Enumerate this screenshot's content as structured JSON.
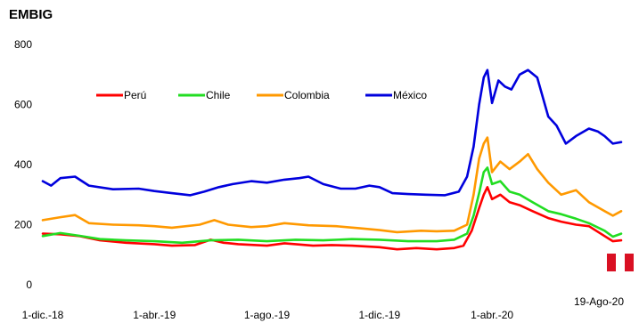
{
  "chart_data": {
    "type": "line",
    "title": "EMBIG",
    "ylim": [
      0,
      800
    ],
    "yticks": [
      0,
      200,
      400,
      600,
      800
    ],
    "x_start": "2018-12-01",
    "x_end": "2020-08-19",
    "xtick_labels": [
      {
        "date": "2018-12-01",
        "label": "1-dic.-18"
      },
      {
        "date": "2019-04-01",
        "label": "1-abr.-19"
      },
      {
        "date": "2019-08-01",
        "label": "1-ago.-19"
      },
      {
        "date": "2019-12-01",
        "label": "1-dic.-19"
      },
      {
        "date": "2020-04-01",
        "label": "1-abr.-20"
      },
      {
        "date": "2020-08-19",
        "label": "19-Ago-20"
      }
    ],
    "legend_position": "top-left",
    "grid": false,
    "series": [
      {
        "name": "Perú",
        "color": "#ff0000",
        "points": [
          [
            "2018-12-01",
            170
          ],
          [
            "2018-12-20",
            168
          ],
          [
            "2019-01-10",
            162
          ],
          [
            "2019-02-01",
            148
          ],
          [
            "2019-03-01",
            140
          ],
          [
            "2019-04-01",
            135
          ],
          [
            "2019-04-20",
            130
          ],
          [
            "2019-05-15",
            132
          ],
          [
            "2019-06-01",
            150
          ],
          [
            "2019-06-15",
            140
          ],
          [
            "2019-07-01",
            135
          ],
          [
            "2019-08-01",
            130
          ],
          [
            "2019-08-20",
            138
          ],
          [
            "2019-09-01",
            135
          ],
          [
            "2019-09-20",
            130
          ],
          [
            "2019-10-10",
            132
          ],
          [
            "2019-11-01",
            130
          ],
          [
            "2019-12-01",
            125
          ],
          [
            "2019-12-20",
            118
          ],
          [
            "2020-01-10",
            122
          ],
          [
            "2020-02-01",
            118
          ],
          [
            "2020-02-20",
            122
          ],
          [
            "2020-03-01",
            130
          ],
          [
            "2020-03-10",
            180
          ],
          [
            "2020-03-18",
            255
          ],
          [
            "2020-03-23",
            300
          ],
          [
            "2020-03-27",
            325
          ],
          [
            "2020-04-01",
            285
          ],
          [
            "2020-04-10",
            300
          ],
          [
            "2020-04-20",
            275
          ],
          [
            "2020-05-01",
            265
          ],
          [
            "2020-05-15",
            245
          ],
          [
            "2020-06-01",
            222
          ],
          [
            "2020-06-15",
            210
          ],
          [
            "2020-07-01",
            200
          ],
          [
            "2020-07-15",
            195
          ],
          [
            "2020-08-01",
            162
          ],
          [
            "2020-08-10",
            145
          ],
          [
            "2020-08-19",
            148
          ]
        ]
      },
      {
        "name": "Chile",
        "color": "#22dd22",
        "points": [
          [
            "2018-12-01",
            162
          ],
          [
            "2018-12-20",
            172
          ],
          [
            "2019-01-10",
            163
          ],
          [
            "2019-02-01",
            152
          ],
          [
            "2019-03-01",
            148
          ],
          [
            "2019-04-01",
            145
          ],
          [
            "2019-05-01",
            140
          ],
          [
            "2019-06-01",
            148
          ],
          [
            "2019-07-01",
            150
          ],
          [
            "2019-08-01",
            145
          ],
          [
            "2019-09-01",
            150
          ],
          [
            "2019-10-01",
            148
          ],
          [
            "2019-11-01",
            152
          ],
          [
            "2019-12-01",
            150
          ],
          [
            "2020-01-01",
            145
          ],
          [
            "2020-02-01",
            145
          ],
          [
            "2020-02-20",
            150
          ],
          [
            "2020-03-05",
            170
          ],
          [
            "2020-03-12",
            230
          ],
          [
            "2020-03-18",
            305
          ],
          [
            "2020-03-23",
            375
          ],
          [
            "2020-03-27",
            390
          ],
          [
            "2020-04-01",
            335
          ],
          [
            "2020-04-10",
            345
          ],
          [
            "2020-04-20",
            310
          ],
          [
            "2020-05-01",
            300
          ],
          [
            "2020-05-15",
            275
          ],
          [
            "2020-06-01",
            245
          ],
          [
            "2020-06-15",
            235
          ],
          [
            "2020-07-01",
            220
          ],
          [
            "2020-07-15",
            205
          ],
          [
            "2020-08-01",
            180
          ],
          [
            "2020-08-10",
            160
          ],
          [
            "2020-08-19",
            170
          ]
        ]
      },
      {
        "name": "Colombia",
        "color": "#ff9900",
        "points": [
          [
            "2018-12-01",
            215
          ],
          [
            "2018-12-20",
            225
          ],
          [
            "2019-01-05",
            232
          ],
          [
            "2019-01-20",
            205
          ],
          [
            "2019-02-15",
            200
          ],
          [
            "2019-03-15",
            198
          ],
          [
            "2019-04-01",
            195
          ],
          [
            "2019-04-20",
            190
          ],
          [
            "2019-05-20",
            200
          ],
          [
            "2019-06-05",
            215
          ],
          [
            "2019-06-20",
            200
          ],
          [
            "2019-07-15",
            192
          ],
          [
            "2019-08-01",
            195
          ],
          [
            "2019-08-20",
            205
          ],
          [
            "2019-09-15",
            198
          ],
          [
            "2019-10-15",
            195
          ],
          [
            "2019-11-10",
            188
          ],
          [
            "2019-12-01",
            182
          ],
          [
            "2019-12-20",
            175
          ],
          [
            "2020-01-15",
            180
          ],
          [
            "2020-02-01",
            178
          ],
          [
            "2020-02-20",
            180
          ],
          [
            "2020-03-05",
            200
          ],
          [
            "2020-03-12",
            300
          ],
          [
            "2020-03-18",
            420
          ],
          [
            "2020-03-23",
            470
          ],
          [
            "2020-03-27",
            490
          ],
          [
            "2020-04-01",
            375
          ],
          [
            "2020-04-10",
            410
          ],
          [
            "2020-04-20",
            385
          ],
          [
            "2020-05-01",
            410
          ],
          [
            "2020-05-10",
            435
          ],
          [
            "2020-05-20",
            385
          ],
          [
            "2020-06-01",
            340
          ],
          [
            "2020-06-15",
            300
          ],
          [
            "2020-07-01",
            315
          ],
          [
            "2020-07-15",
            275
          ],
          [
            "2020-08-01",
            245
          ],
          [
            "2020-08-10",
            230
          ],
          [
            "2020-08-19",
            245
          ]
        ]
      },
      {
        "name": "México",
        "color": "#0000dd",
        "points": [
          [
            "2018-12-01",
            345
          ],
          [
            "2018-12-10",
            330
          ],
          [
            "2018-12-20",
            355
          ],
          [
            "2019-01-05",
            360
          ],
          [
            "2019-01-20",
            330
          ],
          [
            "2019-02-15",
            318
          ],
          [
            "2019-03-15",
            320
          ],
          [
            "2019-04-01",
            312
          ],
          [
            "2019-04-20",
            305
          ],
          [
            "2019-05-10",
            298
          ],
          [
            "2019-05-25",
            310
          ],
          [
            "2019-06-10",
            325
          ],
          [
            "2019-06-25",
            335
          ],
          [
            "2019-07-15",
            345
          ],
          [
            "2019-08-01",
            340
          ],
          [
            "2019-08-20",
            350
          ],
          [
            "2019-09-05",
            355
          ],
          [
            "2019-09-15",
            360
          ],
          [
            "2019-10-01",
            335
          ],
          [
            "2019-10-20",
            320
          ],
          [
            "2019-11-05",
            320
          ],
          [
            "2019-11-20",
            330
          ],
          [
            "2019-12-01",
            325
          ],
          [
            "2019-12-15",
            305
          ],
          [
            "2020-01-01",
            302
          ],
          [
            "2020-01-20",
            300
          ],
          [
            "2020-02-10",
            298
          ],
          [
            "2020-02-25",
            310
          ],
          [
            "2020-03-05",
            360
          ],
          [
            "2020-03-12",
            460
          ],
          [
            "2020-03-18",
            600
          ],
          [
            "2020-03-23",
            690
          ],
          [
            "2020-03-27",
            715
          ],
          [
            "2020-04-01",
            605
          ],
          [
            "2020-04-08",
            680
          ],
          [
            "2020-04-15",
            660
          ],
          [
            "2020-04-22",
            650
          ],
          [
            "2020-05-01",
            700
          ],
          [
            "2020-05-10",
            715
          ],
          [
            "2020-05-20",
            690
          ],
          [
            "2020-06-01",
            560
          ],
          [
            "2020-06-10",
            530
          ],
          [
            "2020-06-20",
            470
          ],
          [
            "2020-07-01",
            495
          ],
          [
            "2020-07-15",
            520
          ],
          [
            "2020-07-25",
            510
          ],
          [
            "2020-08-01",
            495
          ],
          [
            "2020-08-10",
            470
          ],
          [
            "2020-08-19",
            475
          ]
        ]
      }
    ]
  }
}
